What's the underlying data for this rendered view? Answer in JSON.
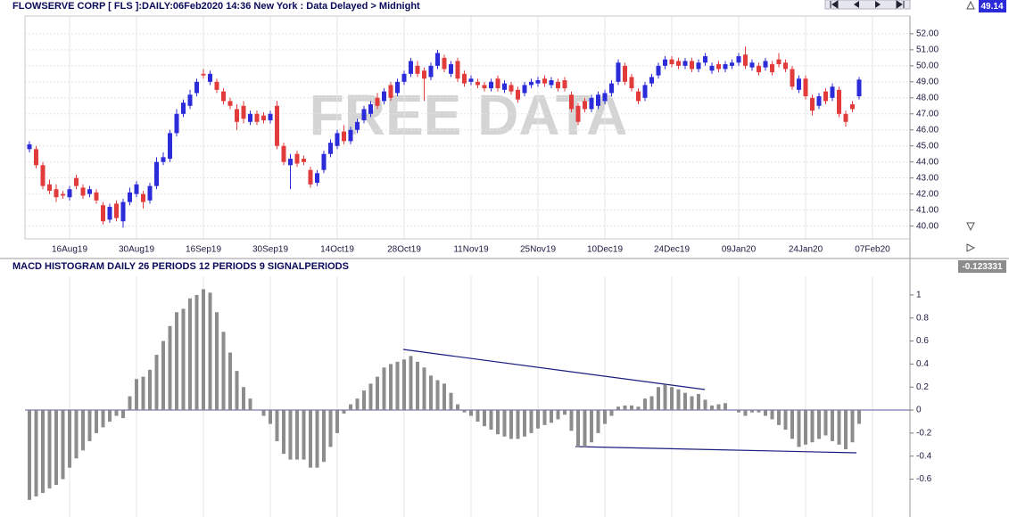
{
  "chart_data": [
    {
      "type": "candlestick",
      "title": "FLOWSERVE CORP [ FLS ]:DAILY:06Feb2020 14:36 New York : Data Delayed > Midnight",
      "last_price": 49.14,
      "watermark": "FREE DATA",
      "up_color": "#2b2bd9",
      "down_color": "#e23b3b",
      "x": [
        null,
        null,
        null,
        null,
        null,
        null,
        "16Aug19",
        null,
        null,
        null,
        null,
        null,
        null,
        null,
        null,
        null,
        "30Aug19",
        null,
        null,
        null,
        null,
        null,
        null,
        null,
        null,
        null,
        "16Sep19",
        null,
        null,
        null,
        null,
        null,
        null,
        null,
        null,
        null,
        "30Sep19",
        null,
        null,
        null,
        null,
        null,
        null,
        null,
        null,
        null,
        "14Oct19",
        null,
        null,
        null,
        null,
        null,
        null,
        null,
        null,
        null,
        "28Oct19",
        null,
        null,
        null,
        null,
        null,
        null,
        null,
        null,
        null,
        "11Nov19",
        null,
        null,
        null,
        null,
        null,
        null,
        null,
        null,
        null,
        "25Nov19",
        null,
        null,
        null,
        null,
        null,
        null,
        null,
        null,
        null,
        "10Dec19",
        null,
        null,
        null,
        null,
        null,
        null,
        null,
        null,
        null,
        "24Dec19",
        null,
        null,
        null,
        null,
        null,
        null,
        null,
        null,
        null,
        "09Jan20",
        null,
        null,
        null,
        null,
        null,
        null,
        null,
        null,
        null,
        "24Jan20",
        null,
        null,
        null,
        null,
        null,
        null,
        null,
        null,
        null,
        "07Feb20"
      ],
      "open": [
        44.8,
        44.8,
        43.8,
        42.6,
        42.3,
        42.0,
        41.8,
        43.0,
        42.4,
        42.0,
        42.1,
        41.3,
        40.4,
        41.4,
        40.3,
        41.5,
        42.0,
        42.0,
        41.6,
        42.5,
        44.0,
        44.2,
        45.8,
        47.0,
        47.5,
        48.3,
        49.5,
        49.0,
        49.0,
        48.4,
        47.8,
        47.3,
        47.5,
        46.5,
        47.0,
        46.9,
        46.6,
        47.5,
        45.0,
        43.8,
        44.5,
        44.2,
        43.5,
        42.7,
        43.5,
        44.5,
        45.0,
        45.9,
        45.3,
        46.0,
        46.6,
        47.0,
        48.0,
        47.8,
        48.8,
        48.3,
        49.0,
        49.5,
        50.0,
        49.7,
        49.3,
        50.0,
        50.5,
        49.5,
        50.3,
        49.5,
        49.0,
        49.0,
        48.8,
        48.6,
        49.2,
        48.5,
        48.8,
        48.5,
        48.3,
        48.8,
        48.9,
        49.2,
        48.8,
        49.0,
        49.1,
        48.2,
        47.5,
        47.8,
        47.3,
        47.5,
        47.8,
        48.3,
        49.0,
        50.0,
        49.3,
        48.4,
        48.0,
        48.9,
        49.4,
        50.0,
        50.4,
        50.3,
        50.0,
        50.3,
        49.8,
        50.2,
        49.7,
        50.1,
        49.8,
        50.0,
        50.2,
        50.7,
        49.9,
        50.0,
        49.9,
        50.1,
        50.4,
        50.2,
        49.8,
        48.5,
        49.2,
        48.0,
        47.5,
        48.4,
        48.0,
        48.5,
        47.0,
        47.6,
        48.1,
        null,
        null
      ],
      "high": [
        45.3,
        45.0,
        44.0,
        42.9,
        42.6,
        42.2,
        42.5,
        43.2,
        42.6,
        42.5,
        42.3,
        41.5,
        41.4,
        41.6,
        41.7,
        42.4,
        42.8,
        42.2,
        42.7,
        44.3,
        44.6,
        46.0,
        47.3,
        47.9,
        48.5,
        49.2,
        49.8,
        49.7,
        49.2,
        48.6,
        48.0,
        47.6,
        47.8,
        47.2,
        47.2,
        47.1,
        47.2,
        47.8,
        45.2,
        44.5,
        44.7,
        44.4,
        43.7,
        43.5,
        44.7,
        45.4,
        46.0,
        46.3,
        46.2,
        46.7,
        47.5,
        47.8,
        48.3,
        48.6,
        49.0,
        49.2,
        49.7,
        50.5,
        50.3,
        49.9,
        50.2,
        51.0,
        50.7,
        50.3,
        50.5,
        49.7,
        49.4,
        49.2,
        49.0,
        49.2,
        49.4,
        49.1,
        49.0,
        48.7,
        49.0,
        49.2,
        49.3,
        49.4,
        49.3,
        49.2,
        49.3,
        48.4,
        47.7,
        48.0,
        48.2,
        48.4,
        48.5,
        49.1,
        50.4,
        50.2,
        49.5,
        48.6,
        49.0,
        49.5,
        50.2,
        50.6,
        50.6,
        50.5,
        50.5,
        50.5,
        50.4,
        50.8,
        50.2,
        50.3,
        50.3,
        50.4,
        50.8,
        51.2,
        50.4,
        50.2,
        50.5,
        50.3,
        50.8,
        50.4,
        50.0,
        49.4,
        49.4,
        48.2,
        48.3,
        48.6,
        48.9,
        48.7,
        47.2,
        47.8,
        49.3,
        null,
        null
      ],
      "low": [
        44.6,
        43.6,
        42.3,
        42.0,
        41.5,
        41.7,
        41.6,
        42.3,
        41.7,
        41.8,
        41.4,
        40.1,
        40.2,
        40.3,
        39.9,
        41.3,
        41.8,
        41.1,
        41.4,
        42.3,
        43.8,
        44.0,
        45.6,
        46.8,
        47.3,
        48.1,
        49.2,
        48.8,
        48.3,
        47.6,
        47.3,
        46.0,
        46.4,
        46.3,
        46.3,
        46.4,
        46.4,
        44.8,
        43.8,
        42.3,
        43.7,
        43.8,
        42.4,
        42.5,
        43.3,
        44.3,
        44.8,
        45.1,
        45.1,
        45.8,
        46.4,
        46.8,
        47.3,
        47.6,
        47.8,
        48.1,
        48.8,
        49.3,
        49.3,
        47.8,
        49.1,
        49.8,
        49.6,
        49.3,
        49.0,
        48.7,
        48.8,
        48.6,
        48.4,
        48.4,
        48.4,
        48.3,
        48.2,
        47.7,
        48.1,
        48.6,
        48.7,
        48.7,
        48.6,
        48.4,
        48.4,
        47.1,
        46.3,
        47.1,
        47.1,
        47.3,
        47.6,
        48.1,
        48.8,
        48.8,
        48.4,
        47.6,
        47.8,
        48.7,
        49.2,
        49.8,
        49.9,
        49.8,
        49.8,
        49.6,
        49.6,
        50.0,
        49.5,
        49.6,
        49.6,
        49.8,
        50.0,
        49.8,
        49.7,
        49.4,
        49.7,
        49.4,
        49.9,
        49.6,
        48.5,
        48.3,
        47.9,
        46.9,
        47.3,
        47.6,
        47.8,
        46.8,
        46.2,
        47.1,
        47.9,
        null,
        null
      ],
      "close": [
        45.1,
        43.8,
        42.5,
        42.2,
        41.8,
        41.9,
        42.3,
        42.5,
        41.9,
        42.3,
        41.6,
        40.3,
        41.2,
        40.5,
        41.5,
        42.1,
        42.6,
        41.5,
        42.5,
        44.0,
        44.3,
        45.8,
        47.0,
        47.7,
        48.2,
        49.0,
        49.4,
        49.5,
        48.5,
        47.8,
        47.5,
        46.5,
        46.7,
        47.0,
        46.5,
        46.6,
        47.0,
        45.0,
        44.0,
        44.2,
        43.9,
        44.0,
        42.6,
        43.3,
        44.5,
        45.2,
        45.8,
        45.3,
        46.0,
        46.5,
        47.3,
        47.6,
        47.5,
        48.4,
        48.0,
        49.0,
        49.5,
        50.3,
        49.5,
        49.2,
        50.0,
        50.8,
        49.8,
        50.1,
        49.2,
        48.9,
        49.2,
        48.8,
        48.6,
        49.0,
        48.6,
        48.9,
        48.4,
        47.9,
        48.8,
        49.0,
        49.1,
        48.9,
        49.1,
        48.6,
        48.6,
        47.3,
        46.5,
        47.3,
        48.0,
        48.2,
        48.3,
        48.9,
        50.2,
        49.0,
        48.6,
        47.8,
        48.8,
        49.3,
        50.0,
        50.4,
        50.1,
        50.0,
        50.3,
        49.8,
        50.2,
        50.6,
        50.0,
        49.8,
        50.1,
        50.2,
        50.6,
        50.0,
        50.2,
        49.6,
        50.3,
        49.6,
        50.1,
        49.8,
        48.7,
        49.2,
        48.1,
        47.2,
        48.1,
        47.8,
        48.7,
        47.0,
        46.5,
        47.3,
        49.14,
        null,
        null
      ],
      "ylim": [
        39.2,
        52.55
      ],
      "yticks": [
        {
          "value": 40,
          "label": "40.00"
        },
        {
          "value": 41,
          "label": "41.00"
        },
        {
          "value": 42,
          "label": "42.00"
        },
        {
          "value": 43,
          "label": "43.00"
        },
        {
          "value": 44,
          "label": "44.00"
        },
        {
          "value": 45,
          "label": "45.00"
        },
        {
          "value": 46,
          "label": "46.00"
        },
        {
          "value": 47,
          "label": "47.00"
        },
        {
          "value": 48,
          "label": "48.00"
        },
        {
          "value": 49,
          "label": "49.00"
        },
        {
          "value": 50,
          "label": "50.00"
        },
        {
          "value": 51,
          "label": "51.00"
        },
        {
          "value": 52,
          "label": "52.00"
        }
      ],
      "grid": true
    },
    {
      "type": "bar",
      "title": "MACD HISTOGRAM DAILY 26 PERIODS 12 PERIODS 9 SIGNALPERIODS",
      "last_value": -0.123331,
      "color": "#8c8c8c",
      "values": [
        -0.78,
        -0.75,
        -0.72,
        -0.68,
        -0.65,
        -0.6,
        -0.5,
        -0.42,
        -0.35,
        -0.27,
        -0.2,
        -0.15,
        -0.1,
        -0.05,
        -0.07,
        0.12,
        0.27,
        0.29,
        0.35,
        0.48,
        0.6,
        0.73,
        0.85,
        0.88,
        0.97,
        1.0,
        1.05,
        1.02,
        0.85,
        0.68,
        0.5,
        0.34,
        0.2,
        0.1,
        0.0,
        -0.05,
        -0.12,
        -0.27,
        -0.38,
        -0.43,
        -0.43,
        -0.43,
        -0.5,
        -0.5,
        -0.45,
        -0.32,
        -0.2,
        -0.03,
        0.05,
        0.1,
        0.17,
        0.23,
        0.29,
        0.37,
        0.4,
        0.42,
        0.44,
        0.47,
        0.42,
        0.37,
        0.3,
        0.26,
        0.23,
        0.15,
        0.05,
        -0.02,
        -0.05,
        -0.1,
        -0.14,
        -0.17,
        -0.21,
        -0.23,
        -0.25,
        -0.25,
        -0.23,
        -0.2,
        -0.16,
        -0.13,
        -0.11,
        -0.08,
        -0.04,
        -0.18,
        -0.32,
        -0.32,
        -0.28,
        -0.2,
        -0.12,
        -0.05,
        0.03,
        0.04,
        0.04,
        0.03,
        0.1,
        0.12,
        0.2,
        0.22,
        0.2,
        0.18,
        0.15,
        0.12,
        0.14,
        0.09,
        0.04,
        0.05,
        0.06,
        0.0,
        -0.02,
        -0.05,
        -0.02,
        -0.02,
        -0.05,
        -0.08,
        -0.13,
        -0.17,
        -0.25,
        -0.32,
        -0.3,
        -0.28,
        -0.25,
        -0.22,
        -0.27,
        -0.3,
        -0.34,
        -0.28,
        -0.12
      ],
      "ylim": [
        -0.89,
        1.1
      ],
      "yticks": [
        -0.6,
        -0.4,
        -0.2,
        0,
        0.2,
        0.4,
        0.6,
        0.8,
        1
      ],
      "grid": false
    }
  ]
}
